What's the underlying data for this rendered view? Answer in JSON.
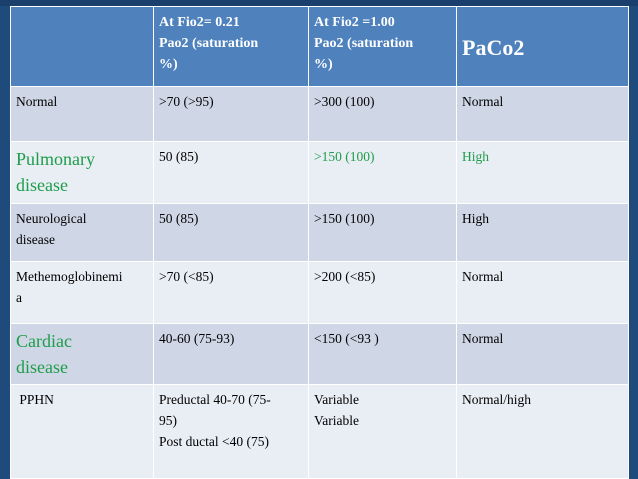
{
  "colors": {
    "background": "#1f4a7c",
    "header": "#4f81bd",
    "row_dark": "#cfd7e6",
    "row_light": "#e9edf4",
    "highlight_green": "#1e9c4a"
  },
  "header": {
    "col1": "",
    "col2_lines": [
      "At  Fio2= 0.21",
      "Pao2 (saturation",
      "%)"
    ],
    "col3_lines": [
      "At Fio2 =1.00",
      "Pao2 (saturation",
      "%)"
    ],
    "col4": "PaCo2"
  },
  "rows": [
    {
      "condition": "Normal",
      "fio021": ">70 (>95)",
      "fio100": ">300 (100)",
      "paco2": "Normal"
    },
    {
      "condition_lines": [
        "Pulmonary",
        "disease"
      ],
      "fio021": "50 (85)",
      "fio100": ">150 (100)",
      "paco2": "High"
    },
    {
      "condition_lines": [
        "Neurological",
        "disease"
      ],
      "fio021": "50 (85)",
      "fio100": ">150 (100)",
      "paco2": "High"
    },
    {
      "condition_lines": [
        "Methemoglobinemi",
        "a"
      ],
      "fio021": ">70 (<85)",
      "fio100": ">200 (<85)",
      "paco2": "Normal"
    },
    {
      "condition_lines": [
        "Cardiac",
        "disease"
      ],
      "fio021": "40-60 (75-93)",
      "fio100_green": "<150",
      "fio100_rest": " (<93 )",
      "paco2": "Normal"
    },
    {
      "condition": " PPHN",
      "fio021_lines": [
        "Preductal  40-70 (75-",
        "95)",
        "Post ductal <40 (75)"
      ],
      "fio100_lines": [
        "Variable",
        "Variable"
      ],
      "paco2": "Normal/high"
    }
  ]
}
